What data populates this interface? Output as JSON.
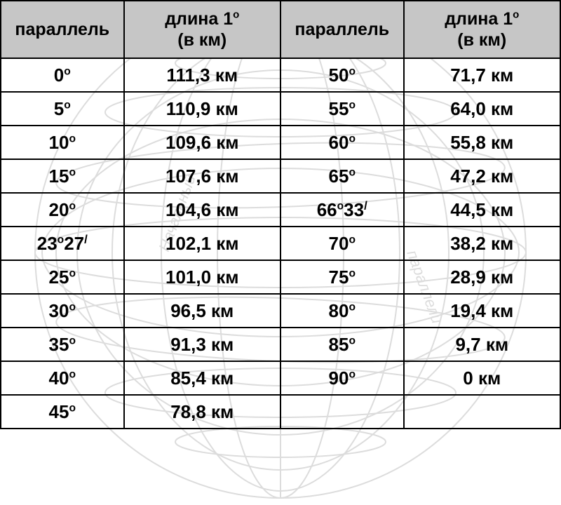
{
  "headers": {
    "parallel": "параллель",
    "length_line1": "длина 1",
    "length_unit_sup": "о",
    "length_line2": "(в км)"
  },
  "rows": [
    {
      "p1": "0",
      "p1_sup": "о",
      "l1": "111,3 км",
      "p2": "50",
      "p2_sup": "о",
      "l2": "71,7 км"
    },
    {
      "p1": "5",
      "p1_sup": "о",
      "l1": "110,9 км",
      "p2": "55",
      "p2_sup": "о",
      "l2": "64,0 км"
    },
    {
      "p1": "10",
      "p1_sup": "о",
      "l1": "109,6 км",
      "p2": "60",
      "p2_sup": "о",
      "l2": "55,8 км"
    },
    {
      "p1": "15",
      "p1_sup": "о",
      "l1": "107,6 км",
      "p2": "65",
      "p2_sup": "о",
      "l2": "47,2 км"
    },
    {
      "p1": "20",
      "p1_sup": "о",
      "l1": "104,6 км",
      "p2": "66",
      "p2_sup": "о",
      "p2_min": "33",
      "p2_prime": "/",
      "l2": "44,5 км"
    },
    {
      "p1": "23",
      "p1_sup": "о",
      "p1_min": "27",
      "p1_prime": "/",
      "l1": "102,1 км",
      "p2": "70",
      "p2_sup": "о",
      "l2": "38,2 км"
    },
    {
      "p1": "25",
      "p1_sup": "о",
      "l1": "101,0 км",
      "p2": "75",
      "p2_sup": "о",
      "l2": "28,9 км"
    },
    {
      "p1": "30",
      "p1_sup": "о",
      "l1": "96,5 км",
      "p2": "80",
      "p2_sup": "о",
      "l2": "19,4 км"
    },
    {
      "p1": "35",
      "p1_sup": "о",
      "l1": "91,3 км",
      "p2": "85",
      "p2_sup": "о",
      "l2": "9,7 км"
    },
    {
      "p1": "40",
      "p1_sup": "о",
      "l1": "85,4 км",
      "p2": "90",
      "p2_sup": "о",
      "l2": "0 км"
    },
    {
      "p1": "45",
      "p1_sup": "о",
      "l1": "78,8 км",
      "p2": "",
      "p2_sup": "",
      "l2": ""
    }
  ],
  "style": {
    "header_bg": "#c6c6c6",
    "border_color": "#000000",
    "text_color": "#000000",
    "globe_stroke": "#b3b3b3",
    "globe_opacity": 0.45,
    "font_size_cell": 26,
    "font_size_header": 25,
    "font_weight": "bold"
  }
}
